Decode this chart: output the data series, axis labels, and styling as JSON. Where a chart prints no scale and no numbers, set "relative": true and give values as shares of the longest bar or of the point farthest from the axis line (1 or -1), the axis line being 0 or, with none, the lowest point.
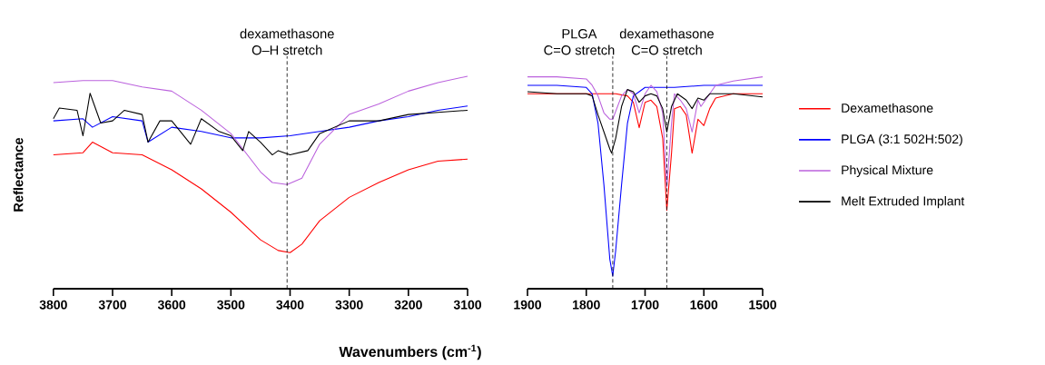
{
  "chart_data": [
    {
      "type": "line",
      "relative": true,
      "ylabel": "Reflectance",
      "xlabel": "Wavenumbers (cm$^{-1}$)",
      "xlim": [
        3800,
        3100
      ],
      "xticks": [
        3800,
        3700,
        3600,
        3500,
        3400,
        3300,
        3200,
        3100
      ],
      "ref_lines": [
        {
          "axis": "x",
          "value": 3405,
          "label": "dexamethasone O–H stretch",
          "line_style": "dashed",
          "color": "#000000"
        }
      ],
      "series": [
        {
          "color": "#ff0000",
          "x": [
            3800,
            3750,
            3734,
            3700,
            3650,
            3600,
            3550,
            3500,
            3450,
            3420,
            3400,
            3380,
            3350,
            3300,
            3250,
            3200,
            3150,
            3100
          ],
          "values": [
            0.63,
            0.64,
            0.69,
            0.64,
            0.63,
            0.56,
            0.47,
            0.36,
            0.23,
            0.18,
            0.17,
            0.21,
            0.32,
            0.43,
            0.5,
            0.56,
            0.6,
            0.61
          ]
        },
        {
          "color": "#0000ff",
          "x": [
            3800,
            3750,
            3734,
            3700,
            3650,
            3640,
            3600,
            3550,
            3500,
            3450,
            3400,
            3350,
            3300,
            3250,
            3200,
            3150,
            3100
          ],
          "values": [
            0.79,
            0.8,
            0.76,
            0.81,
            0.79,
            0.69,
            0.76,
            0.74,
            0.71,
            0.71,
            0.72,
            0.74,
            0.76,
            0.79,
            0.81,
            0.84,
            0.86
          ]
        },
        {
          "color": "#bb62dd",
          "x": [
            3800,
            3750,
            3700,
            3650,
            3600,
            3550,
            3500,
            3450,
            3430,
            3405,
            3380,
            3350,
            3300,
            3250,
            3200,
            3150,
            3100
          ],
          "values": [
            0.97,
            0.98,
            0.98,
            0.95,
            0.93,
            0.84,
            0.73,
            0.55,
            0.5,
            0.49,
            0.52,
            0.68,
            0.82,
            0.87,
            0.93,
            0.97,
            1.0
          ]
        },
        {
          "color": "#000000",
          "x": [
            3800,
            3790,
            3760,
            3750,
            3738,
            3720,
            3700,
            3680,
            3650,
            3640,
            3620,
            3600,
            3568,
            3550,
            3520,
            3500,
            3480,
            3470,
            3450,
            3430,
            3420,
            3400,
            3370,
            3350,
            3300,
            3250,
            3200,
            3150,
            3100
          ],
          "values": [
            0.8,
            0.85,
            0.84,
            0.72,
            0.92,
            0.78,
            0.79,
            0.84,
            0.82,
            0.69,
            0.79,
            0.79,
            0.68,
            0.8,
            0.74,
            0.72,
            0.65,
            0.74,
            0.69,
            0.63,
            0.65,
            0.63,
            0.65,
            0.73,
            0.79,
            0.79,
            0.82,
            0.83,
            0.84
          ]
        }
      ]
    },
    {
      "type": "line",
      "relative": true,
      "legend": "right",
      "xlim": [
        1900,
        1500
      ],
      "xticks": [
        1900,
        1800,
        1700,
        1600,
        1500
      ],
      "ref_lines": [
        {
          "axis": "x",
          "value": 1755,
          "label": "PLGA C=O stretch",
          "line_style": "dashed",
          "color": "#000000"
        },
        {
          "axis": "x",
          "value": 1663,
          "label": "dexamethasone C=O stretch",
          "line_style": "dashed",
          "color": "#000000"
        }
      ],
      "series": [
        {
          "name": "Dexamethasone",
          "color": "#ff0000",
          "x": [
            1900,
            1800,
            1750,
            1730,
            1720,
            1710,
            1700,
            1690,
            1680,
            1670,
            1663,
            1655,
            1650,
            1640,
            1630,
            1620,
            1610,
            1600,
            1590,
            1580,
            1550,
            1500
          ],
          "values": [
            0.92,
            0.92,
            0.92,
            0.91,
            0.88,
            0.76,
            0.88,
            0.89,
            0.86,
            0.71,
            0.37,
            0.64,
            0.85,
            0.86,
            0.82,
            0.64,
            0.8,
            0.77,
            0.85,
            0.9,
            0.92,
            0.92
          ]
        },
        {
          "name": "PLGA (3:1 502H:502)",
          "color": "#0000ff",
          "x": [
            1900,
            1850,
            1800,
            1790,
            1780,
            1770,
            1760,
            1755,
            1750,
            1740,
            1730,
            1720,
            1710,
            1700,
            1650,
            1600,
            1550,
            1500
          ],
          "values": [
            0.96,
            0.96,
            0.95,
            0.92,
            0.78,
            0.49,
            0.14,
            0.06,
            0.18,
            0.49,
            0.78,
            0.91,
            0.93,
            0.95,
            0.95,
            0.96,
            0.96,
            0.96
          ]
        },
        {
          "name": "Physical Mixture",
          "color": "#bb62dd",
          "x": [
            1900,
            1850,
            1800,
            1790,
            1780,
            1770,
            1760,
            1755,
            1740,
            1730,
            1720,
            1710,
            1700,
            1690,
            1680,
            1670,
            1663,
            1655,
            1650,
            1640,
            1630,
            1620,
            1610,
            1605,
            1595,
            1580,
            1550,
            1500
          ],
          "values": [
            1.0,
            1.0,
            0.99,
            0.96,
            0.91,
            0.83,
            0.8,
            0.8,
            0.91,
            0.94,
            0.92,
            0.83,
            0.92,
            0.96,
            0.93,
            0.83,
            0.48,
            0.78,
            0.92,
            0.89,
            0.85,
            0.74,
            0.89,
            0.86,
            0.9,
            0.96,
            0.98,
            1.0
          ]
        },
        {
          "name": "Melt Extruded Implant",
          "color": "#000000",
          "x": [
            1900,
            1850,
            1800,
            1790,
            1780,
            1770,
            1760,
            1757,
            1750,
            1740,
            1730,
            1720,
            1710,
            1700,
            1690,
            1680,
            1670,
            1663,
            1655,
            1645,
            1630,
            1620,
            1610,
            1600,
            1590,
            1550,
            1500
          ],
          "values": [
            0.93,
            0.92,
            0.92,
            0.91,
            0.82,
            0.74,
            0.66,
            0.64,
            0.71,
            0.86,
            0.94,
            0.93,
            0.88,
            0.91,
            0.92,
            0.91,
            0.85,
            0.74,
            0.86,
            0.92,
            0.89,
            0.85,
            0.9,
            0.89,
            0.92,
            0.92,
            0.905
          ]
        }
      ]
    }
  ]
}
